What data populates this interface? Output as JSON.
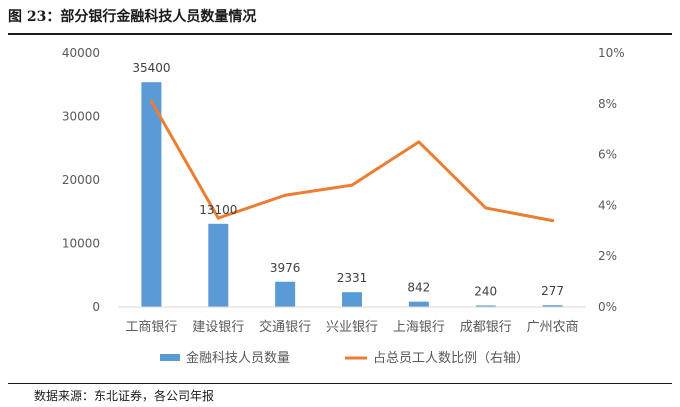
{
  "figure": {
    "title": "图 23：部分银行金融科技人员数量情况",
    "source": "数据来源：东北证券，各公司年报"
  },
  "colors": {
    "bar": "#5b9bd5",
    "line": "#ed7d31",
    "axis": "#d9d9d9",
    "text": "#595959"
  },
  "chart_data": {
    "type": "bar",
    "categories": [
      "工商银行",
      "建设银行",
      "交通银行",
      "兴业银行",
      "上海银行",
      "成都银行",
      "广州农商"
    ],
    "series": [
      {
        "name": "金融科技人员数量",
        "type": "bar",
        "axis": "left",
        "values": [
          35400,
          13100,
          3976,
          2331,
          842,
          240,
          277
        ],
        "data_labels": [
          "35400",
          "13100",
          "3976",
          "2331",
          "842",
          "240",
          "277"
        ]
      },
      {
        "name": "占总员工人数比例（右轴）",
        "type": "line",
        "axis": "right",
        "values": [
          8.1,
          3.5,
          4.4,
          4.8,
          6.5,
          3.9,
          3.4
        ]
      }
    ],
    "y_left": {
      "ylim": [
        0,
        40000
      ],
      "ticks": [
        "0",
        "10000",
        "20000",
        "30000",
        "40000"
      ]
    },
    "y_right": {
      "ylim": [
        0,
        10
      ],
      "ticks": [
        "0%",
        "2%",
        "4%",
        "6%",
        "8%",
        "10%"
      ]
    },
    "legend_position": "bottom",
    "grid": false
  }
}
